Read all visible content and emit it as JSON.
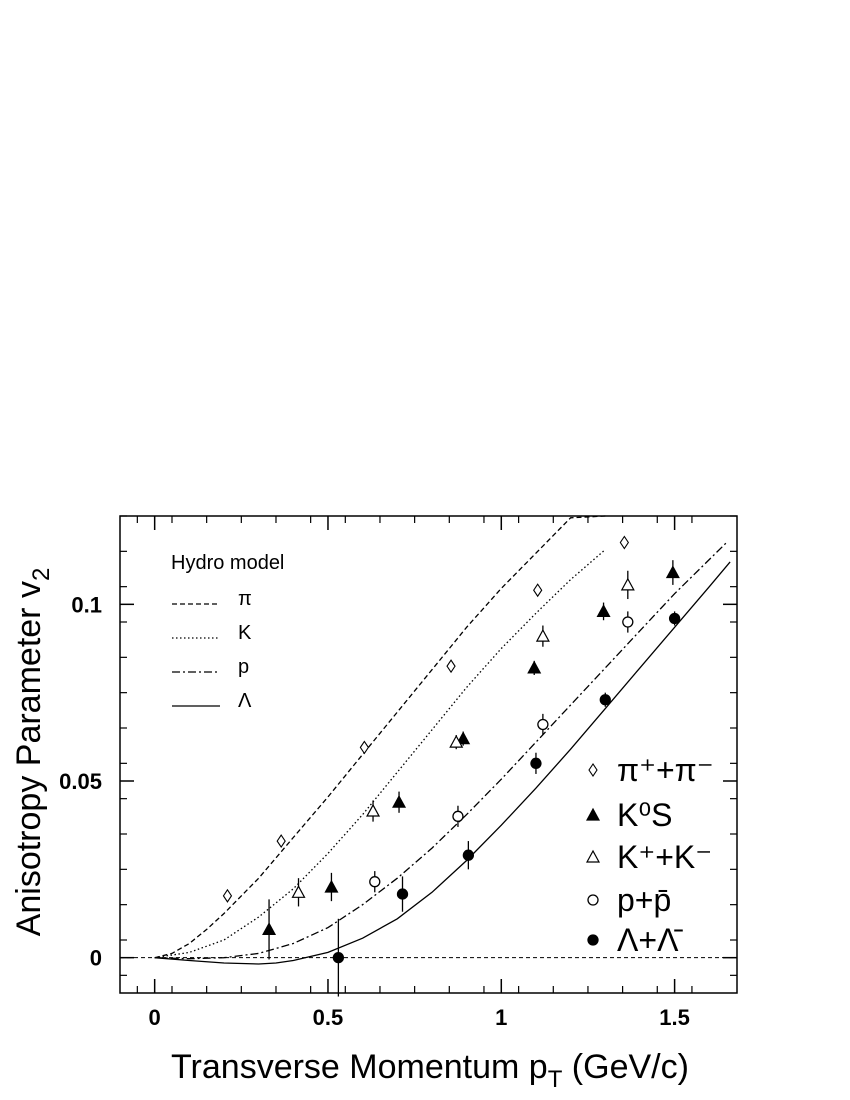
{
  "chart_data": {
    "type": "scatter",
    "xlabel": "Transverse Momentum p",
    "xlabel_sub": "T",
    "xlabel_unit": " (GeV/c)",
    "ylabel": "Anisotropy Parameter v",
    "ylabel_sub": "2",
    "xlim": [
      -0.1,
      1.68
    ],
    "ylim": [
      -0.01,
      0.125
    ],
    "x_ticks": [
      0,
      0.5,
      1,
      1.5
    ],
    "x_tick_labels": [
      "0",
      "0.5",
      "1",
      "1.5"
    ],
    "y_ticks": [
      0,
      0.05,
      0.1
    ],
    "y_tick_labels": [
      "0",
      "0.05",
      "0.1"
    ],
    "zero_line": true,
    "model_legend": {
      "title": "Hydro model",
      "entries": [
        {
          "label": "π",
          "style": "dashed"
        },
        {
          "label": "K",
          "style": "dotted"
        },
        {
          "label": "p",
          "style": "dashdot"
        },
        {
          "label": "Λ",
          "style": "solid"
        }
      ]
    },
    "curves": [
      {
        "style": "dashed",
        "x": [
          0,
          0.05,
          0.1,
          0.15,
          0.2,
          0.3,
          0.4,
          0.5,
          0.6,
          0.7,
          0.8,
          0.9,
          1.0,
          1.1,
          1.2,
          1.3
        ],
        "y": [
          0,
          0.0012,
          0.004,
          0.008,
          0.0125,
          0.0225,
          0.034,
          0.0455,
          0.0575,
          0.0695,
          0.0815,
          0.0935,
          0.1045,
          0.1145,
          0.1245,
          0.125
        ]
      },
      {
        "style": "dotted",
        "x": [
          0,
          0.1,
          0.2,
          0.3,
          0.4,
          0.5,
          0.6,
          0.7,
          0.8,
          0.9,
          1.0,
          1.1,
          1.2,
          1.3
        ],
        "y": [
          0,
          0.0015,
          0.005,
          0.0115,
          0.0195,
          0.0295,
          0.0405,
          0.0525,
          0.0645,
          0.0765,
          0.0875,
          0.0975,
          0.107,
          0.1155
        ]
      },
      {
        "style": "dashdot",
        "x": [
          0,
          0.1,
          0.2,
          0.3,
          0.4,
          0.5,
          0.6,
          0.7,
          0.8,
          0.9,
          1.0,
          1.1,
          1.2,
          1.3,
          1.4,
          1.5,
          1.65
        ],
        "y": [
          0,
          -0.0003,
          0,
          0.0012,
          0.004,
          0.0085,
          0.015,
          0.0225,
          0.031,
          0.0405,
          0.0505,
          0.061,
          0.0715,
          0.082,
          0.0925,
          0.103,
          0.1175
        ]
      },
      {
        "style": "solid",
        "x": [
          0,
          0.1,
          0.2,
          0.3,
          0.35,
          0.4,
          0.5,
          0.6,
          0.7,
          0.8,
          0.9,
          1.0,
          1.1,
          1.2,
          1.3,
          1.4,
          1.5,
          1.6,
          1.66
        ],
        "y": [
          0,
          -0.0008,
          -0.0015,
          -0.0018,
          -0.0015,
          -0.0008,
          0.0015,
          0.0055,
          0.011,
          0.0185,
          0.0275,
          0.0375,
          0.048,
          0.059,
          0.0705,
          0.082,
          0.0935,
          0.105,
          0.112
        ]
      }
    ],
    "series": [
      {
        "name": "π⁺+π⁻",
        "marker": "diamond-open",
        "points": [
          [
            0.21,
            0.0175,
            0.001
          ],
          [
            0.365,
            0.033,
            0.001
          ],
          [
            0.605,
            0.0595,
            0.001
          ],
          [
            0.855,
            0.0825,
            0.001
          ],
          [
            1.105,
            0.104,
            0.0015
          ],
          [
            1.355,
            0.1175,
            0.0015
          ]
        ]
      },
      {
        "name": "K⁰S",
        "marker": "triangle-filled",
        "points": [
          [
            0.33,
            0.008,
            0.0085
          ],
          [
            0.51,
            0.02,
            0.004
          ],
          [
            0.705,
            0.044,
            0.003
          ],
          [
            0.89,
            0.062,
            0.002
          ],
          [
            1.095,
            0.082,
            0.002
          ],
          [
            1.295,
            0.098,
            0.0025
          ],
          [
            1.495,
            0.109,
            0.0035
          ]
        ]
      },
      {
        "name": "K⁺+K⁻",
        "marker": "triangle-open",
        "points": [
          [
            0.415,
            0.0185,
            0.004
          ],
          [
            0.63,
            0.0415,
            0.003
          ],
          [
            0.87,
            0.061,
            0.002
          ],
          [
            1.12,
            0.091,
            0.003
          ],
          [
            1.365,
            0.1055,
            0.004
          ]
        ]
      },
      {
        "name": "p+p̄",
        "marker": "circle-open",
        "points": [
          [
            0.635,
            0.0215,
            0.003
          ],
          [
            0.875,
            0.04,
            0.003
          ],
          [
            1.12,
            0.066,
            0.003
          ],
          [
            1.365,
            0.095,
            0.003
          ]
        ]
      },
      {
        "name": "Λ+Λ̄",
        "marker": "circle-filled",
        "points": [
          [
            0.53,
            0.0,
            0.011
          ],
          [
            0.715,
            0.018,
            0.005
          ],
          [
            0.905,
            0.029,
            0.004
          ],
          [
            1.1,
            0.055,
            0.003
          ],
          [
            1.3,
            0.073,
            0.002
          ],
          [
            1.5,
            0.096,
            0.002
          ]
        ]
      }
    ],
    "legend_placement": "bottom-right"
  }
}
